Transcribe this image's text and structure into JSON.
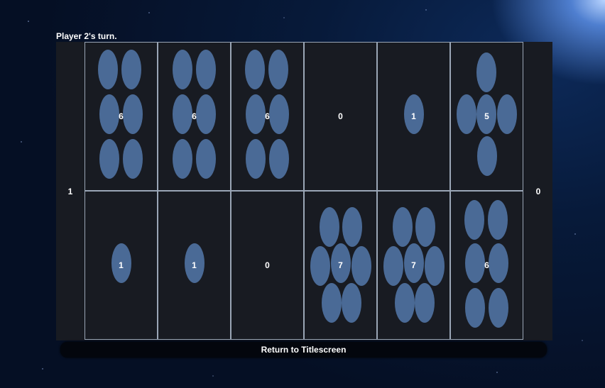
{
  "status": {
    "turn_text": "Player 2's turn."
  },
  "stores": {
    "left": "1",
    "right": "0"
  },
  "pits": {
    "top": [
      "6",
      "6",
      "6",
      "0",
      "1",
      "5"
    ],
    "bottom": [
      "1",
      "1",
      "0",
      "7",
      "7",
      "6"
    ]
  },
  "colors": {
    "seed": "#4d6f9d",
    "pit_border": "#9aa6b6",
    "board": "#181b22"
  },
  "buttons": {
    "return_label": "Return to Titlescreen"
  }
}
